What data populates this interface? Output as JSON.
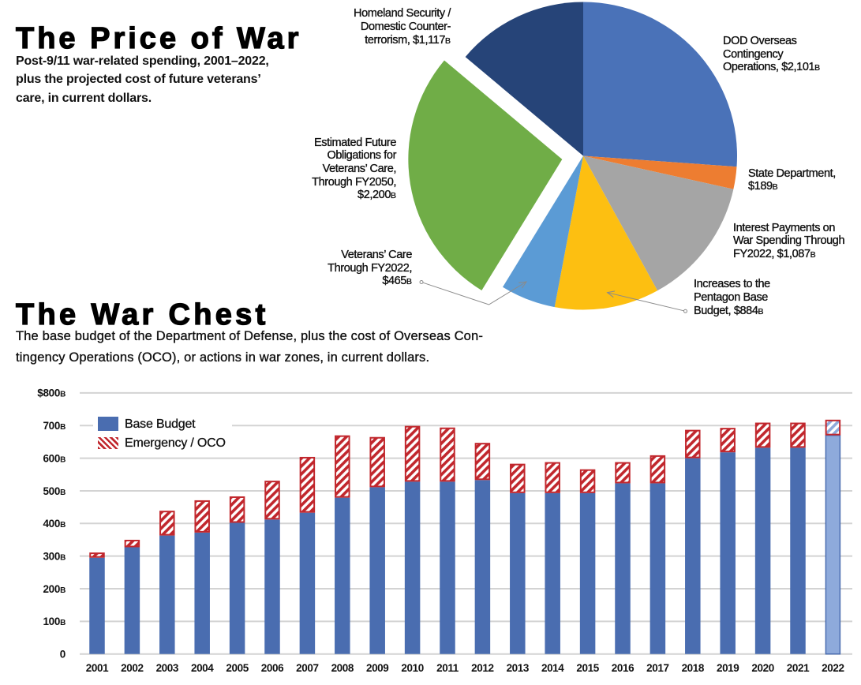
{
  "chart_data": [
    {
      "type": "pie",
      "title": "The Price of War",
      "subtitle_lines": [
        "Post-9/11 war-related spending, 2001–2022,",
        "plus the projected cost of future veterans’",
        "care, in current dollars."
      ],
      "unit": "billions of dollars",
      "slices": [
        {
          "key": "dod-oco",
          "name": "DOD Overseas Contingency Operations",
          "value": 2101,
          "color": "#4a72b8",
          "label_lines": [
            "DOD Overseas",
            "Contingency",
            "Operations,"
          ],
          "value_text": "$2,101",
          "value_unit": "B"
        },
        {
          "key": "state-department",
          "name": "State Department",
          "value": 189,
          "color": "#ed7d31",
          "label_lines": [
            "State Department,"
          ],
          "value_text": "$189",
          "value_unit": "B"
        },
        {
          "key": "interest-payments",
          "name": "Interest Payments on War Spending Through FY2022",
          "value": 1087,
          "color": "#a5a5a5",
          "label_lines": [
            "Interest Payments on",
            "War Spending Through",
            "FY2022,"
          ],
          "value_text": "$1,087",
          "value_unit": "B"
        },
        {
          "key": "pentagon-base-increases",
          "name": "Increases to the Pentagon Base Budget",
          "value": 884,
          "color": "#fdbf11",
          "label_lines": [
            "Increases to the",
            "Pentagon Base",
            "Budget,"
          ],
          "value_text": "$884",
          "value_unit": "B"
        },
        {
          "key": "veterans-care-2022",
          "name": "Veterans’ Care Through FY2022",
          "value": 465,
          "color": "#5b9bd5",
          "label_lines": [
            "Veterans’ Care",
            "Through FY2022,"
          ],
          "value_text": "$465",
          "value_unit": "B"
        },
        {
          "key": "future-veterans-obligations",
          "name": "Estimated Future Obligations for Veterans’ Care, Through FY2050",
          "value": 2200,
          "color": "#70ad47",
          "exploded": true,
          "label_lines": [
            "Estimated Future",
            "Obligations for",
            "Veterans’ Care,",
            "Through FY2050,"
          ],
          "value_text": "$2,200",
          "value_unit": "B"
        },
        {
          "key": "homeland-security",
          "name": "Homeland Security / Domestic Counterterrorism",
          "value": 1117,
          "color": "#264478",
          "label_lines": [
            "Homeland Security /",
            "Domestic Counter-",
            "terrorism,"
          ],
          "value_text": "$1,117",
          "value_unit": "B"
        }
      ]
    },
    {
      "type": "bar",
      "stacked": true,
      "title": "The War Chest",
      "subtitle_lines": [
        "The base budget of the Department of Defense, plus the cost of Overseas Con-",
        "tingency Operations (OCO), or actions in war zones, in current dollars."
      ],
      "xlabel": "",
      "ylabel": "",
      "categories": [
        "2001",
        "2002",
        "2003",
        "2004",
        "2005",
        "2006",
        "2007",
        "2008",
        "2009",
        "2010",
        "2011",
        "2012",
        "2013",
        "2014",
        "2015",
        "2016",
        "2017",
        "2018",
        "2019",
        "2020",
        "2021",
        "2022"
      ],
      "series": [
        {
          "name": "Base Budget",
          "color": "#4a6db0",
          "values": [
            295,
            327,
            363,
            372,
            402,
            412,
            433,
            479,
            511,
            528,
            528,
            533,
            493,
            493,
            493,
            523,
            523,
            600,
            618,
            632,
            632,
            670
          ]
        },
        {
          "name": "Emergency / OCO",
          "color": "#c1272d",
          "pattern": "diagonal-stripes",
          "values": [
            16,
            23,
            76,
            99,
            81,
            119,
            171,
            191,
            154,
            171,
            166,
            114,
            90,
            95,
            73,
            65,
            86,
            87,
            75,
            77,
            77,
            48
          ]
        }
      ],
      "projected_category": "2022",
      "projected_color": "#8eaadb",
      "ylim": [
        0,
        800
      ],
      "y_ticks": [
        0,
        100,
        200,
        300,
        400,
        500,
        600,
        700,
        800
      ],
      "y_tick_labels": [
        {
          "num": "0",
          "unit": ""
        },
        {
          "num": "100",
          "unit": "B"
        },
        {
          "num": "200",
          "unit": "B"
        },
        {
          "num": "300",
          "unit": "B"
        },
        {
          "num": "400",
          "unit": "B"
        },
        {
          "num": "500",
          "unit": "B"
        },
        {
          "num": "600",
          "unit": "B"
        },
        {
          "num": "700",
          "unit": "B"
        },
        {
          "num": "$800",
          "unit": "B"
        }
      ],
      "grid": true,
      "legend": "top-left"
    }
  ]
}
